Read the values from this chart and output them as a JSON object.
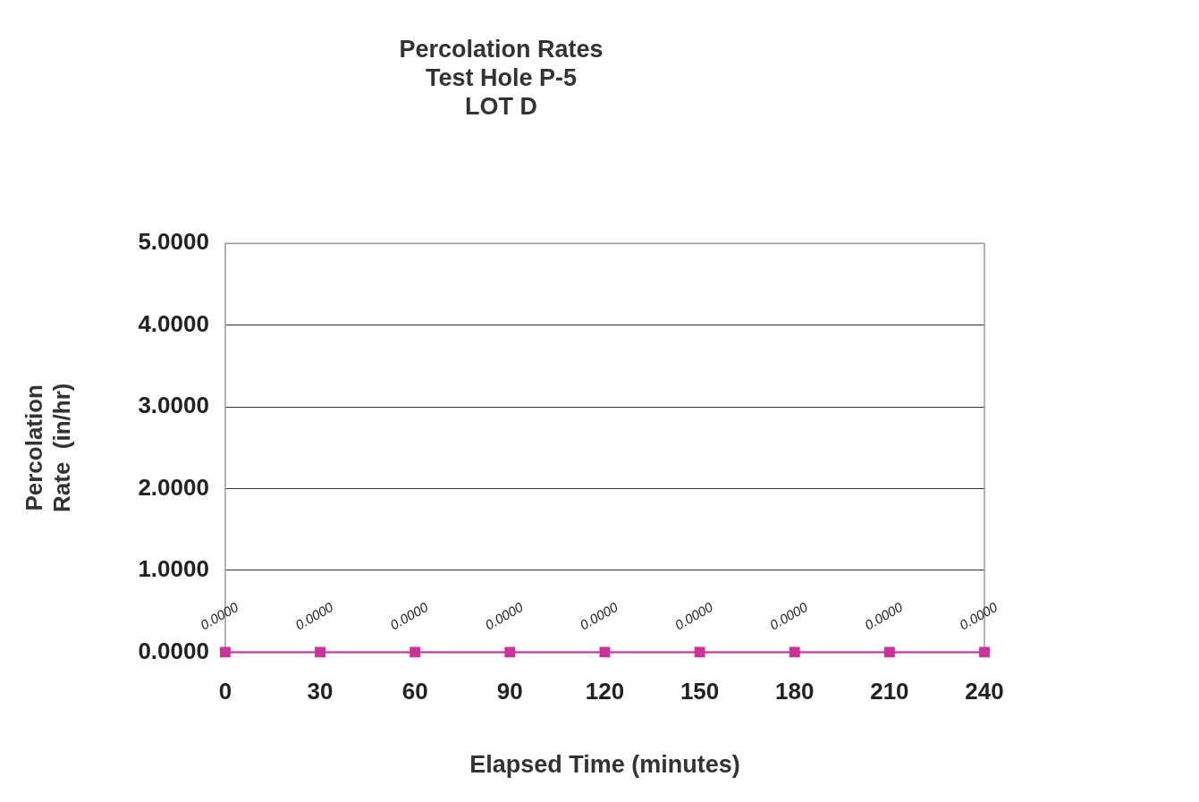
{
  "chart_data": {
    "type": "line",
    "title": "Percolation Rates\nTest Hole P-5\nLOT D",
    "xlabel": "Elapsed Time (minutes)",
    "ylabel": "Percolation\nRate  (in/hr)",
    "x": [
      0,
      30,
      60,
      90,
      120,
      150,
      180,
      210,
      240
    ],
    "series": [
      {
        "color": "#cc3399",
        "values": [
          0,
          0,
          0,
          0,
          0,
          0,
          0,
          0,
          0
        ]
      }
    ],
    "value_labels": [
      "0.0000",
      "0.0000",
      "0.0000",
      "0.0000",
      "0.0000",
      "0.0000",
      "0.0000",
      "0.0000",
      "0.0000"
    ],
    "xlim": [
      0,
      240
    ],
    "xticks": [
      0,
      30,
      60,
      90,
      120,
      150,
      180,
      210,
      240
    ],
    "ylim": [
      0,
      5
    ],
    "yticks": [
      {
        "value": 0,
        "label": "0.0000"
      },
      {
        "value": 1,
        "label": "1.0000"
      },
      {
        "value": 2,
        "label": "2.0000"
      },
      {
        "value": 3,
        "label": "3.0000"
      },
      {
        "value": 4,
        "label": "4.0000"
      },
      {
        "value": 5,
        "label": "5.0000"
      }
    ],
    "grid": "y",
    "legend": false,
    "marker": "square",
    "line_style": "solid"
  }
}
